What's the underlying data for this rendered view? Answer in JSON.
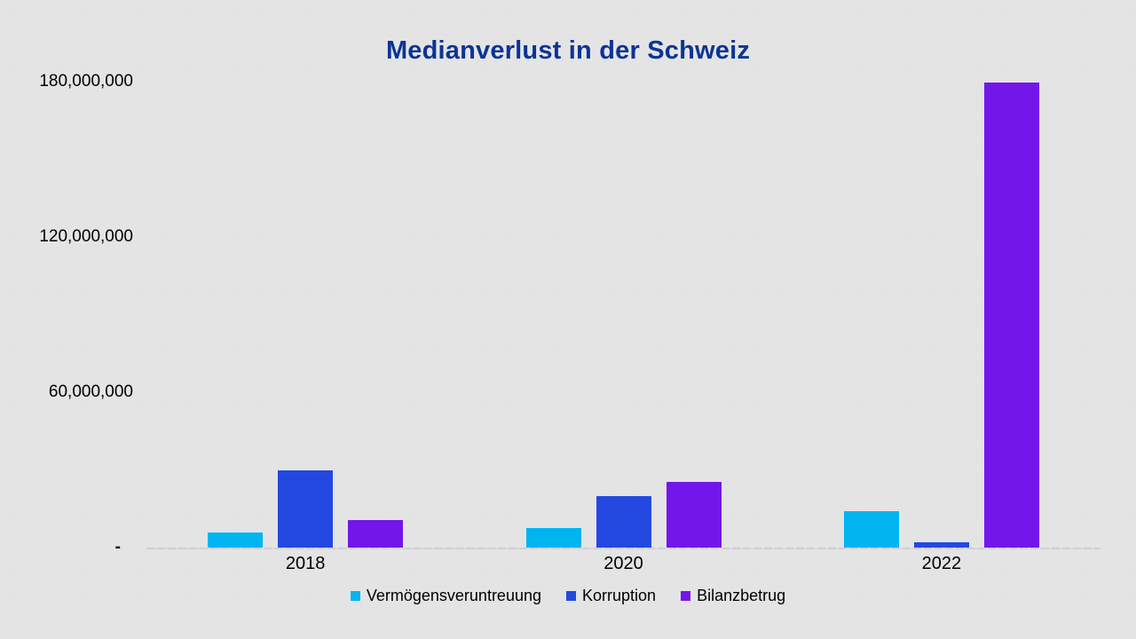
{
  "chart_data": {
    "type": "bar",
    "title": "Medianverlust in der Schweiz",
    "title_color": "#0c3493",
    "categories": [
      "2018",
      "2020",
      "2022"
    ],
    "series": [
      {
        "name": "Vermögensveruntreuung",
        "color": "#00b4f0",
        "values": [
          6000000,
          7500000,
          14000000
        ]
      },
      {
        "name": "Korruption",
        "color": "#2348e0",
        "values": [
          30000000,
          20000000,
          2000000
        ]
      },
      {
        "name": "Bilanzbetrug",
        "color": "#7316ea",
        "values": [
          10500000,
          25500000,
          179500000
        ]
      }
    ],
    "yticks": [
      {
        "label": "180,000,000",
        "value": 180000000
      },
      {
        "label": "120,000,000",
        "value": 120000000
      },
      {
        "label": "60,000,000",
        "value": 60000000
      },
      {
        "label": "-",
        "value": 0
      }
    ],
    "ylim": [
      0,
      180000000
    ],
    "xlabel": "",
    "ylabel": "",
    "grid": false,
    "legend_position": "bottom"
  }
}
